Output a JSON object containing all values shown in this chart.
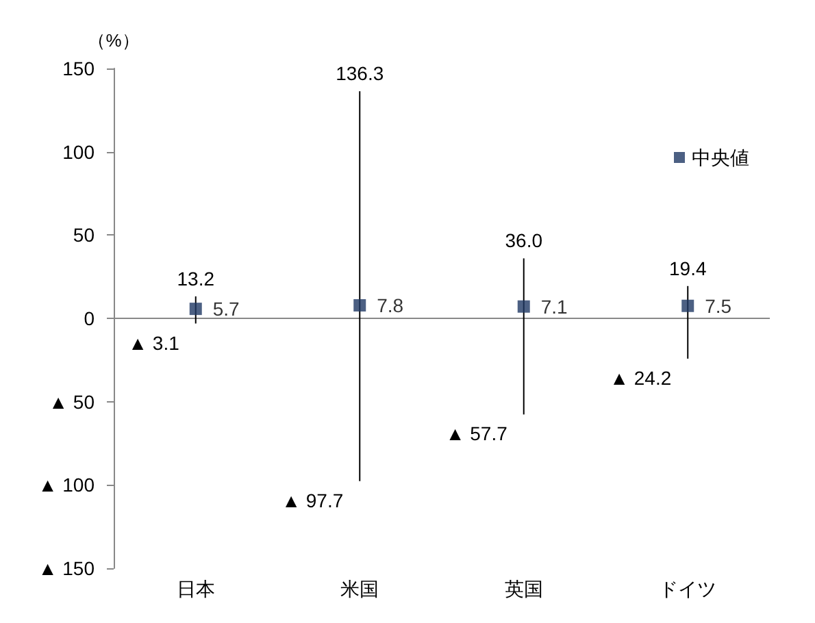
{
  "chart_data": {
    "type": "scatter",
    "ylabel": "（%）",
    "categories": [
      "日本",
      "米国",
      "英国",
      "ドイツ"
    ],
    "series": [
      {
        "name": "中央値",
        "color": "#1f3864",
        "values": [
          5.7,
          7.8,
          7.1,
          7.5
        ],
        "errors": [
          [
            -3.1,
            13.2
          ],
          [
            -97.7,
            136.3
          ],
          [
            -57.7,
            36.0
          ],
          [
            -24.2,
            19.4
          ]
        ]
      }
    ],
    "annotations": [
      {
        "text": "13.2",
        "x": "日本",
        "y": 13.2
      },
      {
        "text": "▲ 3.1",
        "x": "日本",
        "y": -3.1
      },
      {
        "text": "136.3",
        "x": "米国",
        "y": 136.3
      },
      {
        "text": "▲ 97.7",
        "x": "米国",
        "y": -97.7
      },
      {
        "text": "36.0",
        "x": "英国",
        "y": 36.0
      },
      {
        "text": "▲ 57.7",
        "x": "英国",
        "y": -57.7
      },
      {
        "text": "19.4",
        "x": "ドイツ",
        "y": 19.4
      },
      {
        "text": "▲ 24.2",
        "x": "ドイツ",
        "y": -24.2
      }
    ],
    "ylim": [
      -150,
      150
    ],
    "yticks": [
      {
        "value": -150,
        "label": "▲ 150"
      },
      {
        "value": -100,
        "label": "▲ 100"
      },
      {
        "value": -50,
        "label": "▲ 50"
      },
      0,
      50,
      100,
      150
    ],
    "data_labels": true,
    "marker": "square",
    "legend": "top right",
    "grid": false
  }
}
